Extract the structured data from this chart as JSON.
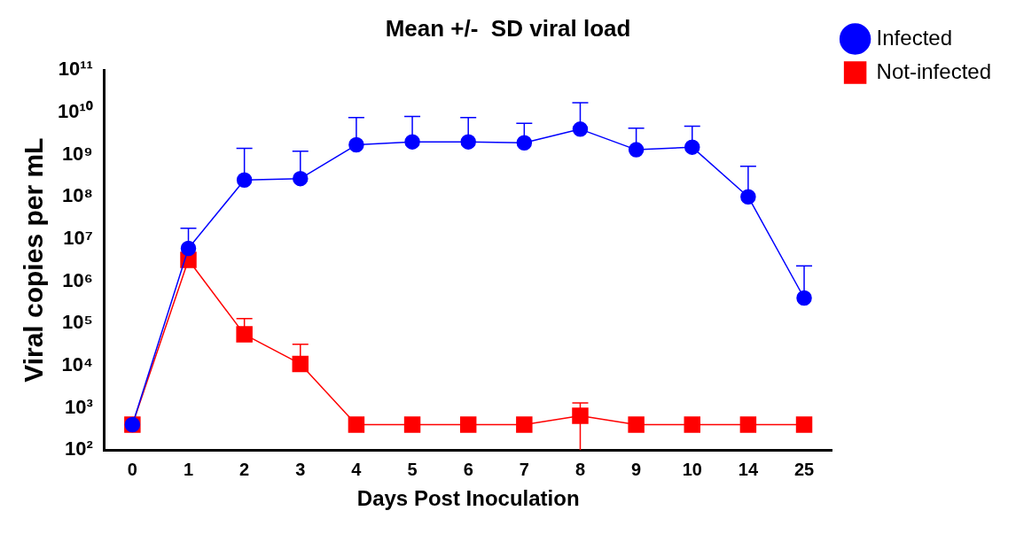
{
  "chart_data": {
    "type": "line",
    "title": "Mean +/-  SD viral load",
    "xlabel": "Days Post Inoculation",
    "ylabel": "Viral copies per mL",
    "categories": [
      "0",
      "1",
      "2",
      "3",
      "4",
      "5",
      "6",
      "7",
      "8",
      "9",
      "10",
      "14",
      "25"
    ],
    "log": true,
    "ylim": [
      100,
      100000000000
    ],
    "yticks": [
      {
        "value": 100,
        "label": "10²"
      },
      {
        "value": 1000,
        "label": "10³"
      },
      {
        "value": 10000,
        "label": "10⁴"
      },
      {
        "value": 100000,
        "label": "10⁵"
      },
      {
        "value": 1000000,
        "label": "10⁶"
      },
      {
        "value": 10000000,
        "label": "10⁷"
      },
      {
        "value": 100000000,
        "label": "10⁸"
      },
      {
        "value": 1000000000,
        "label": "10⁹"
      },
      {
        "value": 10000000000,
        "label": "10¹⁰"
      },
      {
        "value": 100000000000,
        "label": "10¹¹"
      }
    ],
    "grid": false,
    "legend": "top right",
    "line_style": "solid",
    "series": [
      {
        "name": "Infected",
        "color": "#0000ff",
        "marker": "circle",
        "values": [
          400,
          6000000,
          250000000,
          270000000,
          1700000000,
          2000000000,
          2000000000,
          1900000000,
          4000000000,
          1300000000,
          1500000000,
          100000000,
          400000
        ],
        "errors": [
          null,
          [
            6000000,
            18000000
          ],
          [
            250000000,
            1400000000
          ],
          [
            270000000,
            1200000000
          ],
          [
            1700000000,
            7500000000
          ],
          [
            2000000000,
            8000000000
          ],
          [
            2000000000,
            7500000000
          ],
          [
            1900000000,
            5500000000
          ],
          [
            4000000000,
            17000000000
          ],
          [
            1300000000,
            4200000000
          ],
          [
            1500000000,
            4700000000
          ],
          [
            100000000,
            530000000
          ],
          [
            400000,
            2300000
          ]
        ]
      },
      {
        "name": "Not-infected",
        "color": "#ff0000",
        "marker": "square",
        "values": [
          400,
          3200000,
          55000,
          11000,
          400,
          400,
          400,
          400,
          650,
          400,
          400,
          400,
          400
        ],
        "errors": [
          null,
          null,
          [
            55000,
            130000
          ],
          [
            11000,
            32000
          ],
          null,
          null,
          null,
          null,
          [
            100,
            1300
          ],
          null,
          null,
          null,
          null
        ]
      }
    ]
  }
}
